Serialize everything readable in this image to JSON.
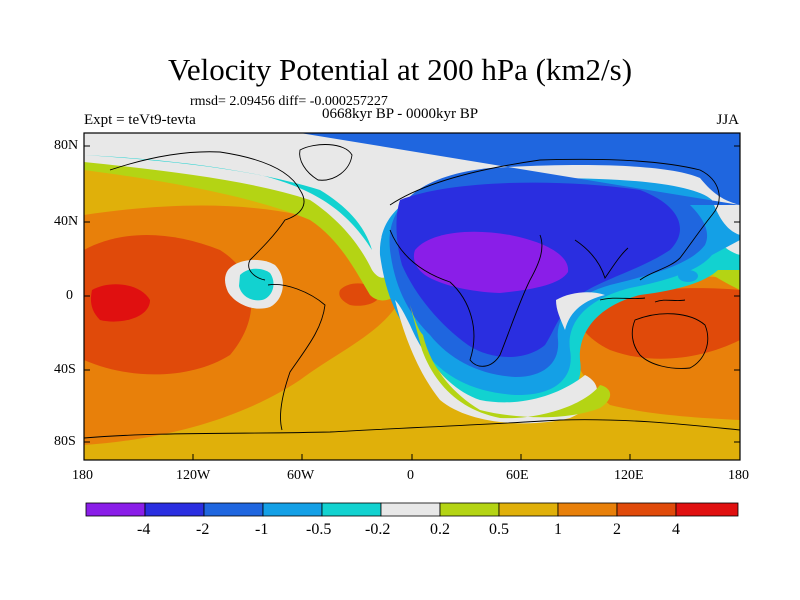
{
  "title": "Velocity Potential at 200 hPa (km2/s)",
  "stats_line": "rmsd= 2.09456 diff= -0.000257227",
  "experiment": "Expt = teVt9-tevta",
  "period": "0668kyr BP - 0000kyr BP",
  "season": "JJA",
  "y_ticks": [
    "80N",
    "40N",
    "0",
    "40S",
    "80S"
  ],
  "x_ticks": [
    "180",
    "120W",
    "60W",
    "0",
    "60E",
    "120E",
    "180"
  ],
  "colorbar": {
    "labels": [
      "-4",
      "-2",
      "-1",
      "-0.5",
      "-0.2",
      "0.2",
      "0.5",
      "1",
      "2",
      "4"
    ],
    "colors": [
      "#8a1ee8",
      "#2a2ee0",
      "#1f66df",
      "#14a0e6",
      "#12d2d0",
      "#e8e8e8",
      "#b4d414",
      "#e0b00a",
      "#e8800a",
      "#e04a0a",
      "#e01010"
    ]
  },
  "colors": {
    "v_neg4": "#8a1ee8",
    "v_neg2": "#2a2ee0",
    "v_neg1": "#1f66df",
    "v_neg05": "#14a0e6",
    "v_neg02": "#12d2d0",
    "v_0": "#e8e8e8",
    "v_02": "#b4d414",
    "v_05": "#e0b00a",
    "v_1": "#e8800a",
    "v_2": "#e04a0a",
    "v_4": "#e01010"
  }
}
